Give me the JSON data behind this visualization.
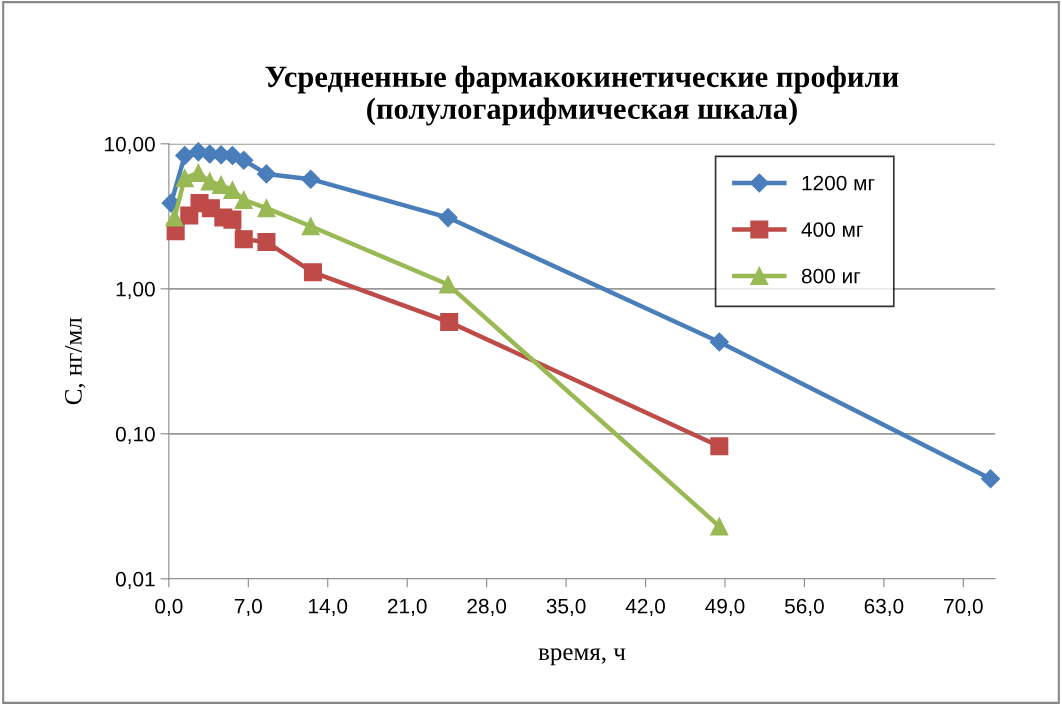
{
  "chart_data": {
    "type": "line",
    "title": "Усредненные фармакокинетические профили\n(полулогарифмическая шкала)",
    "xlabel": "время, ч",
    "ylabel": "С, нг/мл",
    "log": "y",
    "grid": "y",
    "legend": "top right",
    "line_style": "solid",
    "xlim": [
      0,
      72.8
    ],
    "xticks": [
      {
        "value": 0,
        "label": "0,0"
      },
      {
        "value": 7,
        "label": "7,0"
      },
      {
        "value": 14,
        "label": "14,0"
      },
      {
        "value": 21,
        "label": "21,0"
      },
      {
        "value": 28,
        "label": "28,0"
      },
      {
        "value": 35,
        "label": "35,0"
      },
      {
        "value": 42,
        "label": "42,0"
      },
      {
        "value": 49,
        "label": "49,0"
      },
      {
        "value": 56,
        "label": "56,0"
      },
      {
        "value": 63,
        "label": "63,0"
      },
      {
        "value": 70,
        "label": "70,0"
      }
    ],
    "ylim": [
      0.01,
      10
    ],
    "yticks": [
      {
        "value": 0.01,
        "label": "0,01"
      },
      {
        "value": 0.1,
        "label": "0,10"
      },
      {
        "value": 1,
        "label": "1,00"
      },
      {
        "value": 10,
        "label": "10,00"
      }
    ],
    "series": [
      {
        "name": "1200 мг",
        "color": "#4a7ebb",
        "marker": "diamond",
        "x": [
          0.2,
          1.4,
          2.6,
          3.6,
          4.6,
          5.6,
          6.6,
          8.6,
          12.5,
          24.6,
          48.5,
          72.4
        ],
        "values": [
          3.9,
          8.3,
          8.8,
          8.5,
          8.4,
          8.3,
          7.7,
          6.2,
          5.7,
          3.1,
          0.43,
          0.049
        ]
      },
      {
        "name": "400 мг",
        "color": "#be4b48",
        "marker": "square",
        "x": [
          0.6,
          1.8,
          2.7,
          3.7,
          4.8,
          5.6,
          6.6,
          8.6,
          12.7,
          24.7,
          48.5
        ],
        "values": [
          2.5,
          3.2,
          3.9,
          3.6,
          3.1,
          3.0,
          2.2,
          2.1,
          1.3,
          0.59,
          0.082
        ]
      },
      {
        "name": "800 иг",
        "color": "#98b954",
        "marker": "triangle",
        "x": [
          0.5,
          1.4,
          2.6,
          3.6,
          4.6,
          5.6,
          6.6,
          8.6,
          12.5,
          24.6,
          48.5
        ],
        "values": [
          3.1,
          5.8,
          6.3,
          5.5,
          5.2,
          4.8,
          4.1,
          3.6,
          2.7,
          1.07,
          0.023
        ]
      }
    ]
  }
}
